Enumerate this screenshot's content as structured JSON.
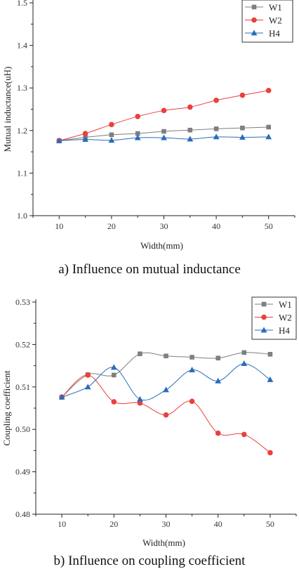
{
  "chart_data": [
    {
      "type": "line",
      "caption": "a) Influence on mutual inductance",
      "xlabel": "Width(mm)",
      "ylabel": "Mutual inductance(uH)",
      "x": [
        10,
        15,
        20,
        25,
        30,
        35,
        40,
        45,
        50
      ],
      "xticks": [
        10,
        20,
        30,
        40,
        50
      ],
      "xlim": [
        5,
        55
      ],
      "yticks": [
        1.0,
        1.1,
        1.2,
        1.3,
        1.4,
        1.5
      ],
      "ytick_labels": [
        "1.0",
        "1.1",
        "1.2",
        "1.3",
        "1.4",
        "1.5"
      ],
      "ylim": [
        1.0,
        1.5
      ],
      "grid": false,
      "legend_position": "top-right",
      "series": [
        {
          "name": "W1",
          "marker": "square",
          "color": "#7f7f7f",
          "values": [
            1.176,
            1.184,
            1.19,
            1.193,
            1.198,
            1.201,
            1.204,
            1.206,
            1.208
          ]
        },
        {
          "name": "W2",
          "marker": "circle",
          "color": "#e8413d",
          "values": [
            1.176,
            1.193,
            1.214,
            1.233,
            1.247,
            1.255,
            1.271,
            1.283,
            1.294
          ]
        },
        {
          "name": "H4",
          "marker": "triangle",
          "color": "#2b6cb8",
          "values": [
            1.176,
            1.179,
            1.177,
            1.183,
            1.183,
            1.18,
            1.185,
            1.184,
            1.185
          ]
        }
      ]
    },
    {
      "type": "line",
      "caption": "b) Influence on coupling coefficient",
      "xlabel": "Width(mm)",
      "ylabel": "Coupling coefficient",
      "x": [
        10,
        15,
        20,
        25,
        30,
        35,
        40,
        45,
        50
      ],
      "xticks": [
        10,
        20,
        30,
        40,
        50
      ],
      "xlim": [
        5,
        55
      ],
      "yticks": [
        0.48,
        0.49,
        0.5,
        0.51,
        0.52,
        0.53
      ],
      "ytick_labels": [
        "0.48",
        "0.49",
        "0.50",
        "0.51",
        "0.52",
        "0.53"
      ],
      "ylim": [
        0.48,
        0.53
      ],
      "grid": false,
      "legend_position": "top-right",
      "series": [
        {
          "name": "W1",
          "marker": "square",
          "color": "#7f7f7f",
          "values": [
            0.5076,
            0.5129,
            0.5128,
            0.5178,
            0.5173,
            0.517,
            0.5168,
            0.5181,
            0.5177
          ]
        },
        {
          "name": "W2",
          "marker": "circle",
          "color": "#e8413d",
          "values": [
            0.5076,
            0.5128,
            0.5065,
            0.5062,
            0.5034,
            0.5066,
            0.4991,
            0.4988,
            0.4945
          ]
        },
        {
          "name": "H4",
          "marker": "triangle",
          "color": "#2b6cb8",
          "values": [
            0.5076,
            0.51,
            0.5146,
            0.5071,
            0.5093,
            0.514,
            0.5114,
            0.5155,
            0.5117
          ]
        }
      ]
    }
  ]
}
